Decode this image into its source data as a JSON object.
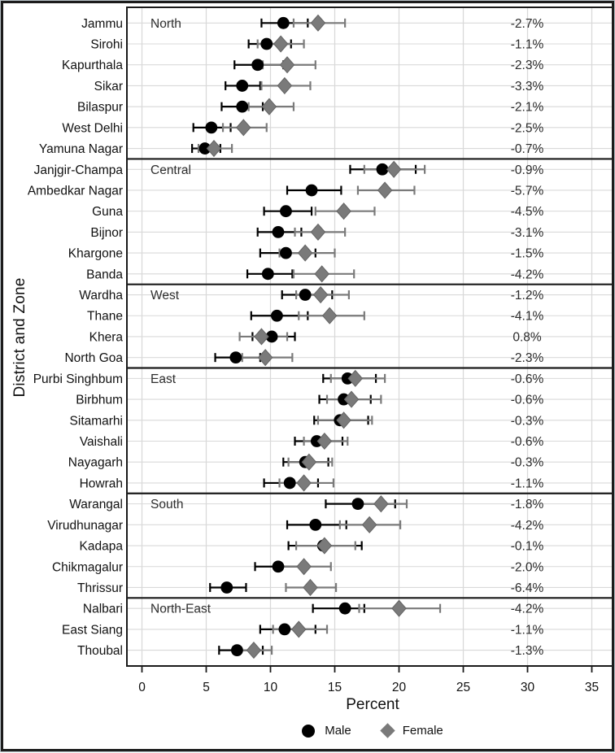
{
  "chart_data": {
    "type": "scatter",
    "subtype": "dot-interval-forest-plot",
    "xlabel": "Percent",
    "ylabel": "District and Zone",
    "xlim": [
      0,
      35
    ],
    "xticks": [
      0,
      5,
      10,
      15,
      20,
      25,
      30,
      35
    ],
    "grid": "on",
    "legend_position": "bottom",
    "legend": [
      {
        "label": "Male",
        "marker": "circle",
        "color": "#000000"
      },
      {
        "label": "Female",
        "marker": "diamond",
        "color": "#7a7a7a"
      }
    ],
    "diff_column_note": "right-hand column shows male-female gap",
    "zones": [
      {
        "name": "North",
        "districts": [
          {
            "name": "Jammu",
            "male": 11.0,
            "male_ci": [
              9.3,
              12.9
            ],
            "female": 13.7,
            "female_ci": [
              11.8,
              15.8
            ],
            "diff": "-2.7%"
          },
          {
            "name": "Sirohi",
            "male": 9.7,
            "male_ci": [
              8.3,
              11.6
            ],
            "female": 10.8,
            "female_ci": [
              9.0,
              12.6
            ],
            "diff": "-1.1%"
          },
          {
            "name": "Kapurthala",
            "male": 9.0,
            "male_ci": [
              7.2,
              11.0
            ],
            "female": 11.3,
            "female_ci": [
              9.4,
              13.5
            ],
            "diff": "-2.3%"
          },
          {
            "name": "Sikar",
            "male": 7.8,
            "male_ci": [
              6.5,
              9.2
            ],
            "female": 11.1,
            "female_ci": [
              9.3,
              13.1
            ],
            "diff": "-3.3%"
          },
          {
            "name": "Bilaspur",
            "male": 7.8,
            "male_ci": [
              6.2,
              9.4
            ],
            "female": 9.9,
            "female_ci": [
              8.3,
              11.8
            ],
            "diff": "-2.1%"
          },
          {
            "name": "West Delhi",
            "male": 5.4,
            "male_ci": [
              4.0,
              6.9
            ],
            "female": 7.9,
            "female_ci": [
              6.3,
              9.7
            ],
            "diff": "-2.5%"
          },
          {
            "name": "Yamuna Nagar",
            "male": 4.9,
            "male_ci": [
              3.9,
              6.1
            ],
            "female": 5.6,
            "female_ci": [
              4.4,
              7.0
            ],
            "diff": "-0.7%"
          }
        ]
      },
      {
        "name": "Central",
        "districts": [
          {
            "name": "Janjgir-Champa",
            "male": 18.7,
            "male_ci": [
              16.2,
              21.3
            ],
            "female": 19.6,
            "female_ci": [
              17.3,
              22.0
            ],
            "diff": "-0.9%"
          },
          {
            "name": "Ambedkar Nagar",
            "male": 13.2,
            "male_ci": [
              11.3,
              15.5
            ],
            "female": 18.9,
            "female_ci": [
              16.8,
              21.2
            ],
            "diff": "-5.7%"
          },
          {
            "name": "Guna",
            "male": 11.2,
            "male_ci": [
              9.5,
              13.2
            ],
            "female": 15.7,
            "female_ci": [
              13.5,
              18.1
            ],
            "diff": "-4.5%"
          },
          {
            "name": "Bijnor",
            "male": 10.6,
            "male_ci": [
              9.0,
              12.4
            ],
            "female": 13.7,
            "female_ci": [
              11.9,
              15.8
            ],
            "diff": "-3.1%"
          },
          {
            "name": "Khargone",
            "male": 11.2,
            "male_ci": [
              9.2,
              13.5
            ],
            "female": 12.7,
            "female_ci": [
              10.7,
              15.0
            ],
            "diff": "-1.5%"
          },
          {
            "name": "Banda",
            "male": 9.8,
            "male_ci": [
              8.2,
              11.7
            ],
            "female": 14.0,
            "female_ci": [
              11.8,
              16.5
            ],
            "diff": "-4.2%"
          }
        ]
      },
      {
        "name": "West",
        "districts": [
          {
            "name": "Wardha",
            "male": 12.7,
            "male_ci": [
              10.9,
              14.8
            ],
            "female": 13.9,
            "female_ci": [
              12.0,
              16.1
            ],
            "diff": "-1.2%"
          },
          {
            "name": "Thane",
            "male": 10.5,
            "male_ci": [
              8.5,
              12.9
            ],
            "female": 14.6,
            "female_ci": [
              12.2,
              17.3
            ],
            "diff": "-4.1%"
          },
          {
            "name": "Khera",
            "male": 10.1,
            "male_ci": [
              8.6,
              11.9
            ],
            "female": 9.3,
            "female_ci": [
              7.6,
              11.3
            ],
            "diff": "0.8%"
          },
          {
            "name": "North Goa",
            "male": 7.3,
            "male_ci": [
              5.7,
              9.2
            ],
            "female": 9.6,
            "female_ci": [
              7.8,
              11.7
            ],
            "diff": "-2.3%"
          }
        ]
      },
      {
        "name": "East",
        "districts": [
          {
            "name": "Purbi Singhbum",
            "male": 16.0,
            "male_ci": [
              14.1,
              18.2
            ],
            "female": 16.6,
            "female_ci": [
              14.7,
              18.9
            ],
            "diff": "-0.6%"
          },
          {
            "name": "Birbhum",
            "male": 15.7,
            "male_ci": [
              13.8,
              17.8
            ],
            "female": 16.3,
            "female_ci": [
              14.4,
              18.6
            ],
            "diff": "-0.6%"
          },
          {
            "name": "Sitamarhi",
            "male": 15.4,
            "male_ci": [
              13.4,
              17.6
            ],
            "female": 15.7,
            "female_ci": [
              13.7,
              17.9
            ],
            "diff": "-0.3%"
          },
          {
            "name": "Vaishali",
            "male": 13.6,
            "male_ci": [
              11.9,
              15.6
            ],
            "female": 14.2,
            "female_ci": [
              12.6,
              16.0
            ],
            "diff": "-0.6%"
          },
          {
            "name": "Nayagarh",
            "male": 12.7,
            "male_ci": [
              11.0,
              14.5
            ],
            "female": 13.0,
            "female_ci": [
              11.4,
              14.8
            ],
            "diff": "-0.3%"
          },
          {
            "name": "Howrah",
            "male": 11.5,
            "male_ci": [
              9.5,
              13.7
            ],
            "female": 12.6,
            "female_ci": [
              10.7,
              14.9
            ],
            "diff": "-1.1%"
          }
        ]
      },
      {
        "name": "South",
        "districts": [
          {
            "name": "Warangal",
            "male": 16.8,
            "male_ci": [
              14.3,
              19.7
            ],
            "female": 18.6,
            "female_ci": [
              16.5,
              20.6
            ],
            "diff": "-1.8%"
          },
          {
            "name": "Virudhunagar",
            "male": 13.5,
            "male_ci": [
              11.3,
              15.9
            ],
            "female": 17.7,
            "female_ci": [
              15.4,
              20.1
            ],
            "diff": "-4.2%"
          },
          {
            "name": "Kadapa",
            "male": 14.1,
            "male_ci": [
              11.4,
              17.1
            ],
            "female": 14.2,
            "female_ci": [
              12.0,
              16.6
            ],
            "diff": "-0.1%"
          },
          {
            "name": "Chikmagalur",
            "male": 10.6,
            "male_ci": [
              8.8,
              12.6
            ],
            "female": 12.6,
            "female_ci": [
              10.4,
              14.7
            ],
            "diff": "-2.0%"
          },
          {
            "name": "Thrissur",
            "male": 6.6,
            "male_ci": [
              5.3,
              8.1
            ],
            "female": 13.1,
            "female_ci": [
              11.2,
              15.1
            ],
            "diff": "-6.4%"
          }
        ]
      },
      {
        "name": "North-East",
        "districts": [
          {
            "name": "Nalbari",
            "male": 15.8,
            "male_ci": [
              13.3,
              17.3
            ],
            "female": 20.0,
            "female_ci": [
              16.9,
              23.2
            ],
            "diff": "-4.2%"
          },
          {
            "name": "East Siang",
            "male": 11.1,
            "male_ci": [
              9.2,
              13.5
            ],
            "female": 12.2,
            "female_ci": [
              10.2,
              14.4
            ],
            "diff": "-1.1%"
          },
          {
            "name": "Thoubal",
            "male": 7.4,
            "male_ci": [
              6.0,
              9.4
            ],
            "female": 8.7,
            "female_ci": [
              7.1,
              10.1
            ],
            "diff": "-1.3%"
          }
        ]
      }
    ],
    "colors": {
      "male": "#000000",
      "female": "#7a7a7a",
      "grid": "#d9d9d9",
      "panel_border": "#1a1a1a",
      "text": "#1d1d1d"
    }
  }
}
